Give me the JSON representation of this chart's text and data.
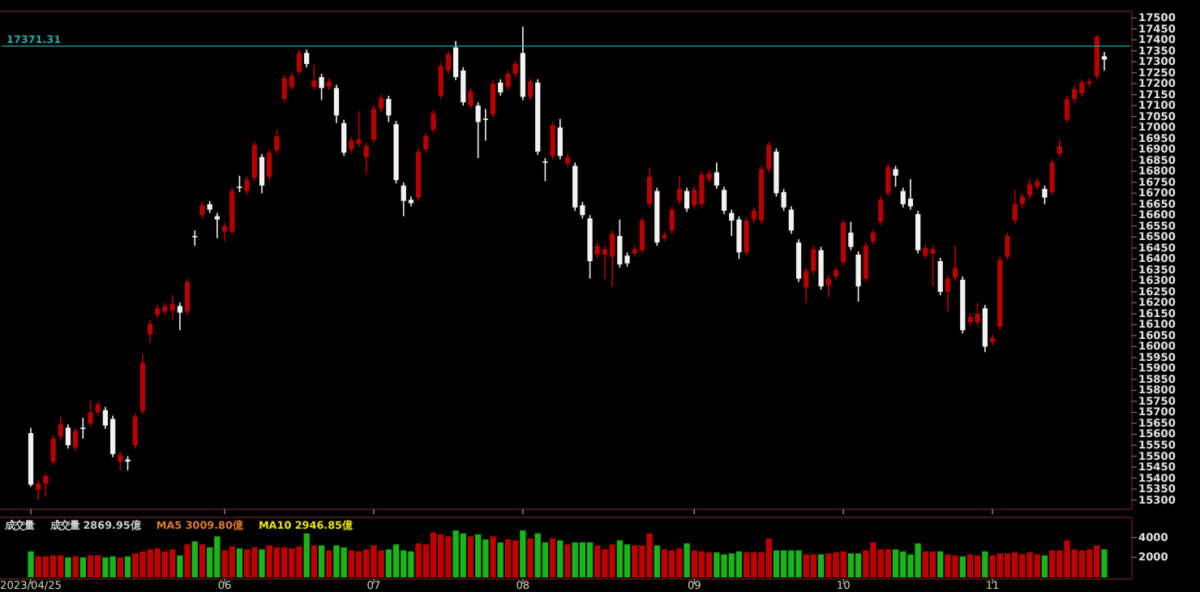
{
  "chart_data": [
    {
      "type": "candlestick",
      "tick_labels": "y",
      "colors": [
        "#f2f2f2",
        "#b80000",
        "#b80000",
        "#b80000",
        "#b80000",
        "#f2f2f2",
        "#b80000",
        "#f2f2f2",
        "#b80000",
        "#b80000",
        "#f2f2f2",
        "#f2f2f2",
        "#b80000",
        "#f2f2f2",
        "#b80000",
        "#b80000",
        "#b80000",
        "#b80000",
        "#b80000",
        "#b80000",
        "#f2f2f2",
        "#b80000",
        "#f2f2f2",
        "#b80000",
        "#f2f2f2",
        "#f2f2f2",
        "#b80000",
        "#b80000",
        "#f2f2f2",
        "#b80000",
        "#b80000",
        "#f2f2f2",
        "#b80000",
        "#b80000",
        "#b80000",
        "#b80000",
        "#b80000",
        "#f2f2f2",
        "#b80000",
        "#f2f2f2",
        "#b80000",
        "#f2f2f2",
        "#f2f2f2",
        "#b80000",
        "#b80000",
        "#b80000",
        "#b80000",
        "#b80000",
        "#f2f2f2",
        "#f2f2f2",
        "#f2f2f2",
        "#f2f2f2",
        "#b80000",
        "#b80000",
        "#b80000",
        "#b80000",
        "#b80000",
        "#f2f2f2",
        "#f2f2f2",
        "#b80000",
        "#f2f2f2",
        "#f2f2f2",
        "#b80000",
        "#f2f2f2",
        "#b80000",
        "#b80000",
        "#f2f2f2",
        "#b80000",
        "#f2f2f2",
        "#f2f2f2",
        "#b80000",
        "#f2f2f2",
        "#b80000",
        "#f2f2f2",
        "#f2f2f2",
        "#f2f2f2",
        "#b80000",
        "#b80000",
        "#b80000",
        "#f2f2f2",
        "#f2f2f2",
        "#b80000",
        "#b80000",
        "#b80000",
        "#f2f2f2",
        "#b80000",
        "#b80000",
        "#b80000",
        "#f2f2f2",
        "#b80000",
        "#b80000",
        "#b80000",
        "#f2f2f2",
        "#f2f2f2",
        "#f2f2f2",
        "#f2f2f2",
        "#b80000",
        "#b80000",
        "#b80000",
        "#b80000",
        "#f2f2f2",
        "#f2f2f2",
        "#f2f2f2",
        "#f2f2f2",
        "#b80000",
        "#b80000",
        "#f2f2f2",
        "#b80000",
        "#b80000",
        "#b80000",
        "#f2f2f2",
        "#f2f2f2",
        "#b80000",
        "#b80000",
        "#b80000",
        "#b80000",
        "#f2f2f2",
        "#f2f2f2",
        "#f2f2f2",
        "#f2f2f2",
        "#b80000",
        "#b80000",
        "#f2f2f2",
        "#b80000",
        "#b80000",
        "#f2f2f2",
        "#b80000",
        "#b80000",
        "#f2f2f2",
        "#b80000",
        "#b80000",
        "#b80000",
        "#b80000",
        "#b80000",
        "#b80000",
        "#b80000",
        "#f2f2f2",
        "#b80000",
        "#b80000",
        "#b80000",
        "#b80000",
        "#b80000",
        "#b80000",
        "#b80000",
        "#f2f2f2"
      ],
      "categories": [
        "2023/04/25",
        null,
        null,
        null,
        null,
        null,
        null,
        null,
        null,
        null,
        null,
        null,
        null,
        null,
        null,
        null,
        null,
        null,
        null,
        null,
        null,
        null,
        null,
        null,
        null,
        null,
        "06",
        null,
        null,
        null,
        null,
        null,
        null,
        null,
        null,
        null,
        null,
        null,
        null,
        null,
        null,
        null,
        null,
        null,
        null,
        null,
        "07",
        null,
        null,
        null,
        null,
        null,
        null,
        null,
        null,
        null,
        null,
        null,
        null,
        null,
        null,
        null,
        null,
        null,
        null,
        null,
        "08",
        null,
        null,
        null,
        null,
        null,
        null,
        null,
        null,
        null,
        null,
        null,
        null,
        null,
        null,
        null,
        null,
        null,
        null,
        null,
        null,
        null,
        null,
        "09",
        null,
        null,
        null,
        null,
        null,
        null,
        null,
        null,
        null,
        null,
        null,
        null,
        null,
        null,
        null,
        null,
        null,
        null,
        null,
        "10",
        null,
        null,
        null,
        null,
        null,
        null,
        null,
        null,
        null,
        null,
        null,
        null,
        null,
        null,
        null,
        null,
        null,
        null,
        null,
        "11",
        null,
        null,
        null,
        null,
        null,
        null,
        null,
        null,
        null,
        null,
        null,
        null,
        null,
        null,
        null
      ],
      "ohlc": [
        [
          15605,
          15630,
          15360,
          15370
        ],
        [
          15345,
          15390,
          15300,
          15375
        ],
        [
          15375,
          15420,
          15315,
          15410
        ],
        [
          15475,
          15595,
          15460,
          15580
        ],
        [
          15590,
          15680,
          15575,
          15645
        ],
        [
          15630,
          15645,
          15535,
          15550
        ],
        [
          15540,
          15630,
          15525,
          15615
        ],
        [
          15630,
          15675,
          15580,
          15625
        ],
        [
          15650,
          15755,
          15635,
          15700
        ],
        [
          15700,
          15750,
          15685,
          15735
        ],
        [
          15710,
          15725,
          15625,
          15640
        ],
        [
          15670,
          15685,
          15495,
          15510
        ],
        [
          15475,
          15520,
          15435,
          15505
        ],
        [
          15485,
          15500,
          15435,
          15475
        ],
        [
          15550,
          15695,
          15535,
          15680
        ],
        [
          15705,
          15965,
          15690,
          15925
        ],
        [
          16055,
          16120,
          16020,
          16105
        ],
        [
          16145,
          16190,
          16130,
          16175
        ],
        [
          16160,
          16200,
          16145,
          16185
        ],
        [
          16165,
          16235,
          16125,
          16195
        ],
        [
          16185,
          16200,
          16075,
          16155
        ],
        [
          16160,
          16310,
          16145,
          16295
        ],
        [
          16505,
          16530,
          16460,
          16500
        ],
        [
          16600,
          16660,
          16585,
          16645
        ],
        [
          16650,
          16665,
          16610,
          16625
        ],
        [
          16595,
          16610,
          16495,
          16580
        ],
        [
          16525,
          16565,
          16480,
          16550
        ],
        [
          16525,
          16725,
          16510,
          16710
        ],
        [
          16730,
          16780,
          16705,
          16725
        ],
        [
          16710,
          16775,
          16695,
          16760
        ],
        [
          16770,
          16935,
          16755,
          16920
        ],
        [
          16865,
          16880,
          16700,
          16735
        ],
        [
          16775,
          16900,
          16760,
          16885
        ],
        [
          16895,
          16990,
          16880,
          16960
        ],
        [
          17130,
          17240,
          17115,
          17225
        ],
        [
          17185,
          17250,
          17170,
          17235
        ],
        [
          17255,
          17355,
          17240,
          17340
        ],
        [
          17340,
          17355,
          17275,
          17290
        ],
        [
          17185,
          17285,
          17170,
          17215
        ],
        [
          17230,
          17245,
          17125,
          17180
        ],
        [
          17185,
          17225,
          17170,
          17210
        ],
        [
          17180,
          17195,
          17020,
          17055
        ],
        [
          17020,
          17035,
          16870,
          16885
        ],
        [
          16900,
          16955,
          16885,
          16940
        ],
        [
          16925,
          17075,
          16910,
          16945
        ],
        [
          16865,
          16930,
          16790,
          16915
        ],
        [
          16945,
          17100,
          16930,
          17085
        ],
        [
          17085,
          17150,
          17070,
          17135
        ],
        [
          17130,
          17145,
          17025,
          17055
        ],
        [
          17015,
          17030,
          16745,
          16760
        ],
        [
          16735,
          16750,
          16595,
          16665
        ],
        [
          16670,
          16685,
          16640,
          16655
        ],
        [
          16680,
          16905,
          16665,
          16890
        ],
        [
          16900,
          16975,
          16885,
          16960
        ],
        [
          16990,
          17080,
          16975,
          17065
        ],
        [
          17145,
          17295,
          17130,
          17280
        ],
        [
          17260,
          17350,
          17245,
          17335
        ],
        [
          17365,
          17395,
          17215,
          17230
        ],
        [
          17260,
          17275,
          17100,
          17115
        ],
        [
          17100,
          17180,
          17085,
          17165
        ],
        [
          17100,
          17115,
          16860,
          17025
        ],
        [
          17040,
          17085,
          16940,
          17035
        ],
        [
          17060,
          17215,
          17045,
          17200
        ],
        [
          17205,
          17220,
          17145,
          17160
        ],
        [
          17185,
          17260,
          17170,
          17245
        ],
        [
          17245,
          17305,
          17230,
          17290
        ],
        [
          17340,
          17460,
          17125,
          17140
        ],
        [
          17140,
          17225,
          17125,
          17210
        ],
        [
          17205,
          17220,
          16875,
          16890
        ],
        [
          16845,
          16860,
          16755,
          16840
        ],
        [
          16870,
          17025,
          16855,
          17010
        ],
        [
          17000,
          17040,
          16855,
          16870
        ],
        [
          16835,
          16880,
          16820,
          16865
        ],
        [
          16825,
          16840,
          16620,
          16635
        ],
        [
          16645,
          16660,
          16585,
          16600
        ],
        [
          16585,
          16600,
          16310,
          16390
        ],
        [
          16420,
          16475,
          16405,
          16460
        ],
        [
          16420,
          16460,
          16310,
          16445
        ],
        [
          16410,
          16530,
          16275,
          16515
        ],
        [
          16505,
          16580,
          16360,
          16375
        ],
        [
          16415,
          16430,
          16365,
          16380
        ],
        [
          16425,
          16460,
          16410,
          16445
        ],
        [
          16440,
          16590,
          16425,
          16575
        ],
        [
          16650,
          16815,
          16635,
          16775
        ],
        [
          16710,
          16725,
          16460,
          16475
        ],
        [
          16495,
          16525,
          16480,
          16510
        ],
        [
          16530,
          16640,
          16515,
          16625
        ],
        [
          16665,
          16780,
          16650,
          16720
        ],
        [
          16710,
          16725,
          16615,
          16630
        ],
        [
          16645,
          16730,
          16630,
          16715
        ],
        [
          16650,
          16800,
          16635,
          16785
        ],
        [
          16765,
          16805,
          16750,
          16790
        ],
        [
          16795,
          16840,
          16720,
          16735
        ],
        [
          16715,
          16730,
          16605,
          16620
        ],
        [
          16610,
          16625,
          16505,
          16575
        ],
        [
          16580,
          16595,
          16400,
          16430
        ],
        [
          16430,
          16590,
          16415,
          16575
        ],
        [
          16580,
          16635,
          16565,
          16620
        ],
        [
          16575,
          16825,
          16560,
          16810
        ],
        [
          16810,
          16935,
          16795,
          16920
        ],
        [
          16890,
          16905,
          16685,
          16700
        ],
        [
          16705,
          16720,
          16620,
          16635
        ],
        [
          16625,
          16640,
          16515,
          16530
        ],
        [
          16475,
          16490,
          16295,
          16310
        ],
        [
          16270,
          16360,
          16200,
          16345
        ],
        [
          16345,
          16460,
          16330,
          16445
        ],
        [
          16440,
          16455,
          16260,
          16275
        ],
        [
          16280,
          16325,
          16225,
          16310
        ],
        [
          16320,
          16365,
          16305,
          16350
        ],
        [
          16385,
          16580,
          16370,
          16565
        ],
        [
          16520,
          16570,
          16440,
          16455
        ],
        [
          16420,
          16435,
          16205,
          16275
        ],
        [
          16310,
          16475,
          16295,
          16460
        ],
        [
          16480,
          16535,
          16465,
          16520
        ],
        [
          16570,
          16685,
          16555,
          16670
        ],
        [
          16700,
          16835,
          16685,
          16820
        ],
        [
          16810,
          16825,
          16730,
          16780
        ],
        [
          16710,
          16725,
          16635,
          16650
        ],
        [
          16675,
          16765,
          16625,
          16640
        ],
        [
          16605,
          16620,
          16425,
          16440
        ],
        [
          16415,
          16465,
          16400,
          16450
        ],
        [
          16425,
          16460,
          16275,
          16445
        ],
        [
          16390,
          16405,
          16235,
          16250
        ],
        [
          16250,
          16325,
          16160,
          16310
        ],
        [
          16315,
          16460,
          16300,
          16360
        ],
        [
          16305,
          16320,
          16060,
          16075
        ],
        [
          16110,
          16150,
          16095,
          16135
        ],
        [
          16110,
          16200,
          16095,
          16150
        ],
        [
          16175,
          16190,
          15975,
          16000
        ],
        [
          16020,
          16055,
          16005,
          16040
        ],
        [
          16090,
          16410,
          16075,
          16395
        ],
        [
          16410,
          16520,
          16395,
          16505
        ],
        [
          16575,
          16715,
          16560,
          16650
        ],
        [
          16650,
          16700,
          16635,
          16685
        ],
        [
          16690,
          16765,
          16675,
          16740
        ],
        [
          16730,
          16770,
          16715,
          16755
        ],
        [
          16720,
          16735,
          16650,
          16680
        ],
        [
          16705,
          16855,
          16690,
          16840
        ],
        [
          16880,
          16945,
          16865,
          16915
        ],
        [
          17035,
          17145,
          17020,
          17130
        ],
        [
          17130,
          17190,
          17115,
          17175
        ],
        [
          17155,
          17220,
          17140,
          17205
        ],
        [
          17200,
          17225,
          17185,
          17210
        ],
        [
          17235,
          17420,
          17220,
          17415
        ],
        [
          17325,
          17345,
          17260,
          17310
        ]
      ],
      "ylim": [
        15265,
        17530
      ],
      "yticks": [
        15300,
        15350,
        15400,
        15450,
        15500,
        15550,
        15600,
        15650,
        15700,
        15750,
        15800,
        15850,
        15900,
        15950,
        16000,
        16050,
        16100,
        16150,
        16200,
        16250,
        16300,
        16350,
        16400,
        16450,
        16500,
        16550,
        16600,
        16650,
        16700,
        16750,
        16800,
        16850,
        16900,
        16950,
        17000,
        17050,
        17100,
        17150,
        17200,
        17250,
        17300,
        17350,
        17400,
        17450,
        17500
      ],
      "ref_lines": [
        {
          "axis": "y",
          "value": 17371.31,
          "label": "17371.31",
          "color": "#2aa8a8"
        }
      ]
    },
    {
      "type": "bar",
      "categories": [
        "2023/04/25",
        null,
        null,
        null,
        null,
        null,
        null,
        null,
        null,
        null,
        null,
        null,
        null,
        null,
        null,
        null,
        null,
        null,
        null,
        null,
        null,
        null,
        null,
        null,
        null,
        null,
        "06",
        null,
        null,
        null,
        null,
        null,
        null,
        null,
        null,
        null,
        null,
        null,
        null,
        null,
        null,
        null,
        null,
        null,
        null,
        null,
        "07",
        null,
        null,
        null,
        null,
        null,
        null,
        null,
        null,
        null,
        null,
        null,
        null,
        null,
        null,
        null,
        null,
        null,
        null,
        null,
        "08",
        null,
        null,
        null,
        null,
        null,
        null,
        null,
        null,
        null,
        null,
        null,
        null,
        null,
        null,
        null,
        null,
        null,
        null,
        null,
        null,
        null,
        null,
        "09",
        null,
        null,
        null,
        null,
        null,
        null,
        null,
        null,
        null,
        null,
        null,
        null,
        null,
        null,
        null,
        null,
        null,
        null,
        null,
        "10",
        null,
        null,
        null,
        null,
        null,
        null,
        null,
        null,
        null,
        null,
        null,
        null,
        null,
        null,
        null,
        null,
        null,
        null,
        null,
        "11",
        null,
        null,
        null,
        null,
        null,
        null,
        null,
        null,
        null,
        null,
        null,
        null,
        null,
        null,
        null
      ],
      "values": [
        2600,
        2100,
        2100,
        2200,
        2200,
        2000,
        2100,
        2000,
        2200,
        2200,
        2000,
        2100,
        2000,
        2100,
        2400,
        2600,
        2800,
        2900,
        2600,
        2800,
        2200,
        3300,
        3600,
        3300,
        3000,
        4100,
        2700,
        3100,
        2900,
        2800,
        3000,
        2800,
        3200,
        3000,
        3000,
        2900,
        3100,
        4400,
        3200,
        3200,
        2700,
        3200,
        3000,
        2700,
        2600,
        2800,
        3200,
        2700,
        2800,
        3300,
        2700,
        2600,
        3400,
        3300,
        4500,
        4300,
        4100,
        4700,
        4400,
        4100,
        4300,
        3800,
        4100,
        3500,
        3800,
        3700,
        4700,
        3900,
        4400,
        3500,
        3900,
        3700,
        3300,
        3500,
        3500,
        3500,
        3200,
        2800,
        3300,
        3700,
        3300,
        3200,
        3200,
        4400,
        3200,
        2800,
        2700,
        2900,
        3400,
        2700,
        2600,
        2500,
        2500,
        2300,
        2400,
        2600,
        2500,
        2500,
        2500,
        3900,
        2700,
        2700,
        2700,
        2700,
        2300,
        2300,
        2300,
        2400,
        2500,
        2600,
        2400,
        2400,
        2700,
        3500,
        2800,
        2800,
        2800,
        2600,
        2300,
        3400,
        2600,
        2600,
        2600,
        2300,
        2200,
        2100,
        2300,
        2200,
        2600,
        2200,
        2400,
        2400,
        2500,
        2300,
        2500,
        2300,
        2200,
        2700,
        2700,
        3700,
        2800,
        2700,
        2800,
        3200,
        2800
      ],
      "colors": [
        "#18b418",
        "#c00000",
        "#c00000",
        "#c00000",
        "#c00000",
        "#18b418",
        "#c00000",
        "#18b418",
        "#c00000",
        "#c00000",
        "#18b418",
        "#18b418",
        "#c00000",
        "#18b418",
        "#c00000",
        "#c00000",
        "#c00000",
        "#c00000",
        "#c00000",
        "#c00000",
        "#18b418",
        "#c00000",
        "#18b418",
        "#c00000",
        "#18b418",
        "#18b418",
        "#c00000",
        "#c00000",
        "#18b418",
        "#c00000",
        "#c00000",
        "#18b418",
        "#c00000",
        "#c00000",
        "#c00000",
        "#c00000",
        "#c00000",
        "#18b418",
        "#c00000",
        "#18b418",
        "#c00000",
        "#18b418",
        "#18b418",
        "#c00000",
        "#c00000",
        "#c00000",
        "#c00000",
        "#c00000",
        "#18b418",
        "#18b418",
        "#18b418",
        "#18b418",
        "#c00000",
        "#c00000",
        "#c00000",
        "#c00000",
        "#c00000",
        "#18b418",
        "#18b418",
        "#c00000",
        "#18b418",
        "#18b418",
        "#c00000",
        "#18b418",
        "#c00000",
        "#c00000",
        "#18b418",
        "#c00000",
        "#18b418",
        "#18b418",
        "#c00000",
        "#18b418",
        "#c00000",
        "#18b418",
        "#18b418",
        "#18b418",
        "#c00000",
        "#c00000",
        "#c00000",
        "#18b418",
        "#18b418",
        "#c00000",
        "#c00000",
        "#c00000",
        "#18b418",
        "#c00000",
        "#c00000",
        "#c00000",
        "#18b418",
        "#c00000",
        "#c00000",
        "#c00000",
        "#18b418",
        "#18b418",
        "#18b418",
        "#18b418",
        "#c00000",
        "#c00000",
        "#c00000",
        "#c00000",
        "#18b418",
        "#18b418",
        "#18b418",
        "#18b418",
        "#c00000",
        "#c00000",
        "#18b418",
        "#c00000",
        "#c00000",
        "#c00000",
        "#18b418",
        "#18b418",
        "#c00000",
        "#c00000",
        "#c00000",
        "#c00000",
        "#18b418",
        "#18b418",
        "#18b418",
        "#18b418",
        "#c00000",
        "#c00000",
        "#18b418",
        "#c00000",
        "#c00000",
        "#18b418",
        "#c00000",
        "#c00000",
        "#18b418",
        "#c00000",
        "#c00000",
        "#c00000",
        "#c00000",
        "#c00000",
        "#c00000",
        "#c00000",
        "#18b418",
        "#c00000",
        "#c00000",
        "#c00000",
        "#c00000",
        "#c00000",
        "#c00000",
        "#c00000",
        "#18b418"
      ],
      "ylim": [
        0,
        6000
      ],
      "yticks": [
        2000,
        4000
      ],
      "annotations": [
        "成交量",
        "成交量 2869.95億",
        "MA5 3009.80億",
        "MA10 2946.85億"
      ]
    }
  ]
}
